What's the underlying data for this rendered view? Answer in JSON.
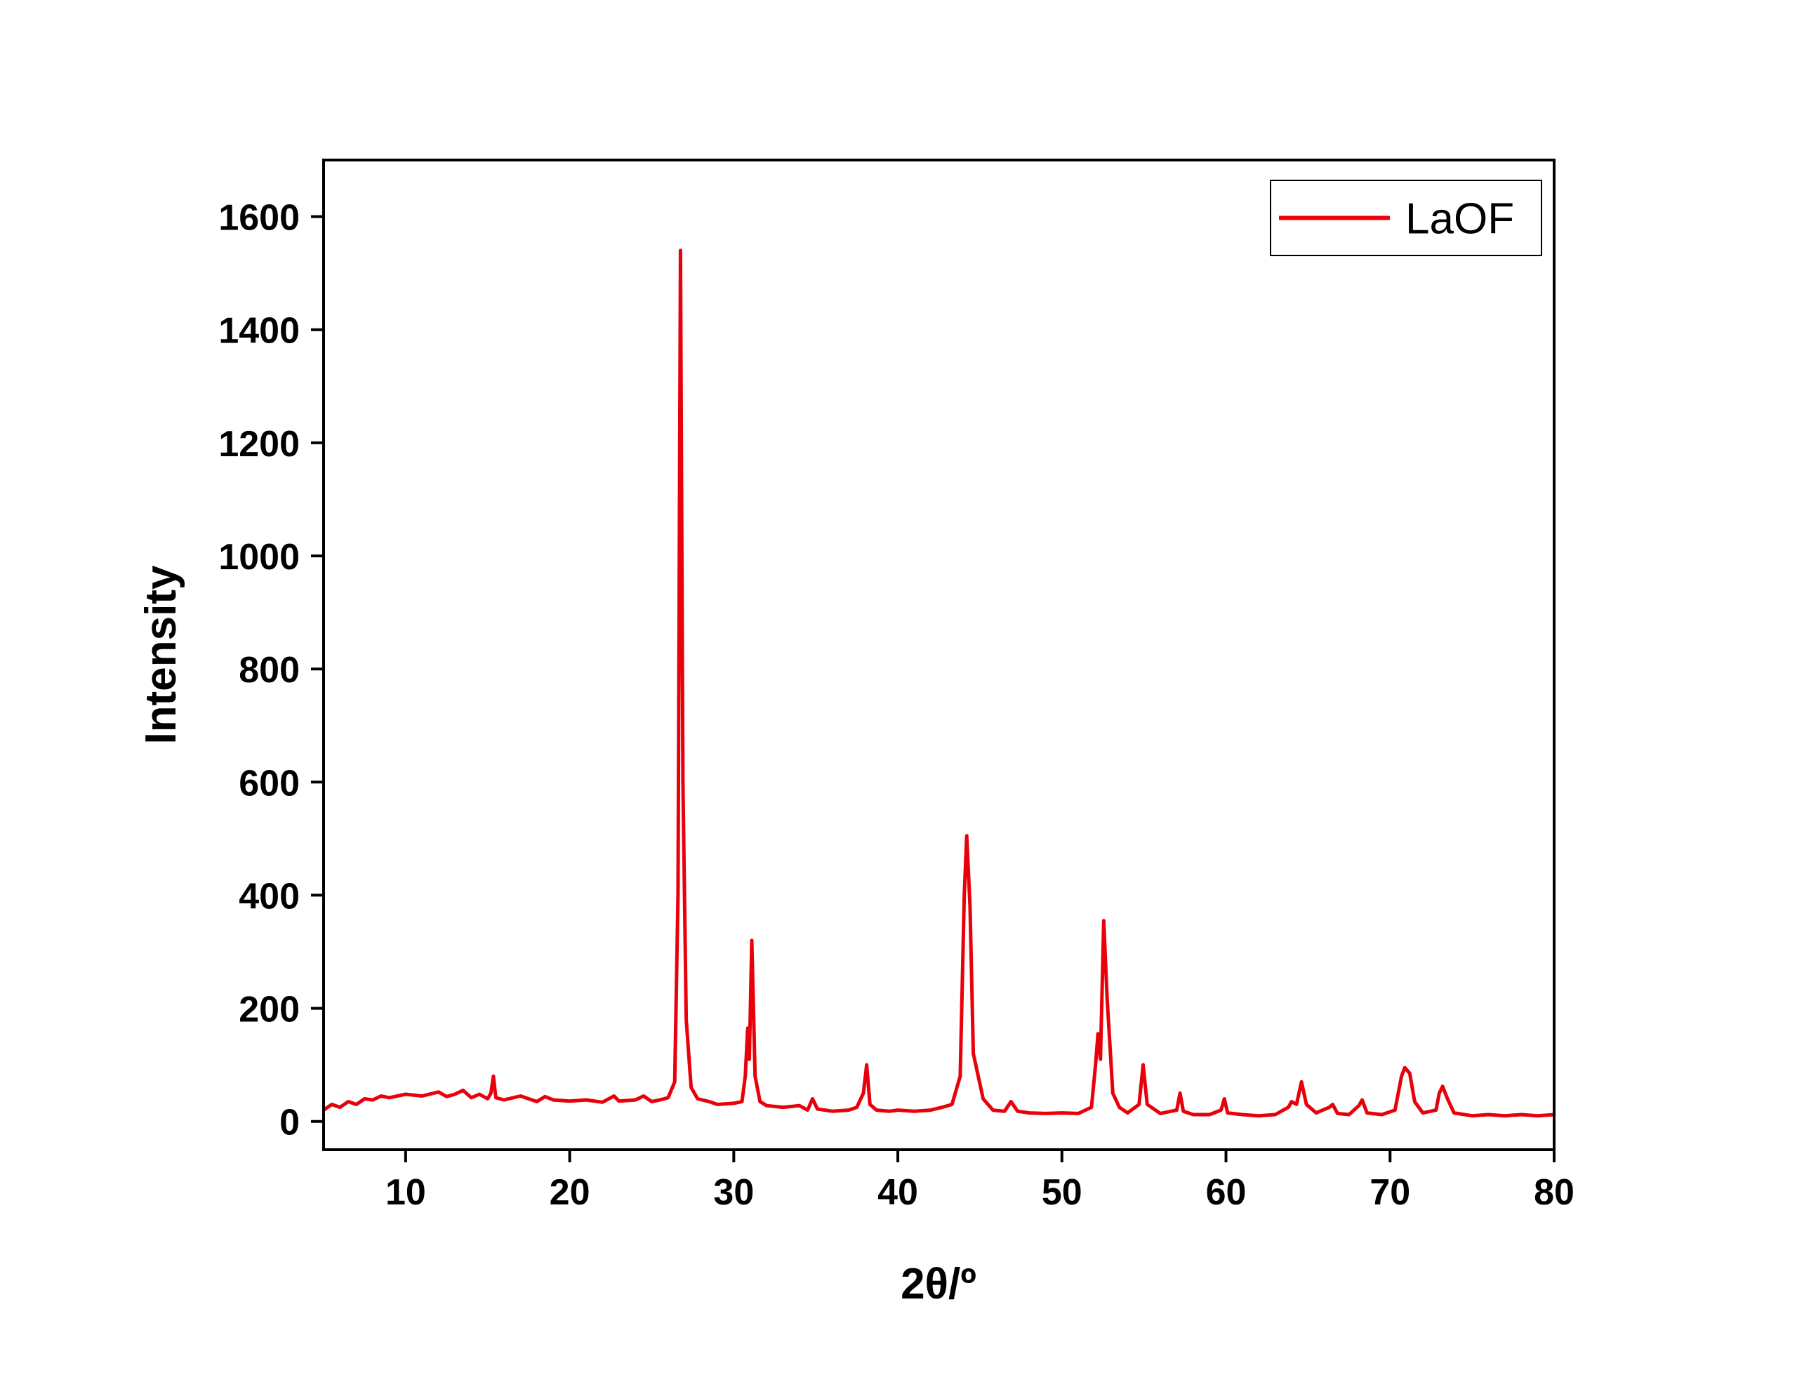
{
  "chart_data": {
    "type": "line",
    "xlabel": "2θ/º",
    "ylabel": "Intensity",
    "xlim": [
      5,
      80
    ],
    "xticks": [
      10,
      20,
      30,
      40,
      50,
      60,
      70,
      80
    ],
    "ylim": [
      -50,
      1700
    ],
    "yticks": [
      0,
      200,
      400,
      600,
      800,
      1000,
      1200,
      1400,
      1600
    ],
    "legend": "upper right",
    "x": [
      5,
      5.5,
      6,
      6.5,
      7,
      7.5,
      8,
      8.5,
      9,
      10,
      11,
      12,
      12.5,
      13,
      13.5,
      14,
      14.5,
      15,
      15.2,
      15.35,
      15.5,
      16,
      17,
      17.5,
      18,
      18.5,
      19,
      20,
      21,
      22,
      22.7,
      23,
      24,
      24.5,
      25,
      25.5,
      26,
      26.4,
      26.6,
      26.75,
      26.9,
      27.1,
      27.4,
      27.8,
      28.5,
      29,
      30,
      30.5,
      30.7,
      30.85,
      30.95,
      31.1,
      31.3,
      31.6,
      32,
      33,
      34,
      34.5,
      34.8,
      35.1,
      36,
      37,
      37.5,
      37.9,
      38.1,
      38.3,
      38.7,
      39.5,
      40,
      41,
      42,
      42.7,
      43.3,
      43.8,
      44.05,
      44.2,
      44.4,
      44.6,
      44.9,
      45.2,
      45.8,
      46.5,
      46.9,
      47.3,
      48,
      49,
      50,
      51,
      51.8,
      52.05,
      52.2,
      52.35,
      52.55,
      52.75,
      53.1,
      53.5,
      54,
      54.7,
      54.95,
      55.2,
      56,
      57,
      57.2,
      57.4,
      58,
      59,
      59.7,
      59.9,
      60.1,
      61,
      62,
      63,
      63.8,
      64.0,
      64.3,
      64.6,
      64.9,
      65.5,
      66.3,
      66.5,
      66.8,
      67.5,
      68.1,
      68.3,
      68.6,
      69.5,
      70.3,
      70.7,
      70.9,
      71.2,
      71.5,
      72,
      72.8,
      73.0,
      73.2,
      73.5,
      73.9,
      75,
      76,
      77,
      78,
      79,
      80
    ],
    "series": [
      {
        "name": "LaOF",
        "color": "#e8000b",
        "values": [
          20,
          30,
          25,
          35,
          30,
          40,
          38,
          45,
          42,
          48,
          45,
          52,
          44,
          48,
          55,
          42,
          48,
          40,
          50,
          80,
          42,
          38,
          45,
          40,
          35,
          44,
          38,
          36,
          38,
          34,
          45,
          36,
          38,
          45,
          35,
          38,
          42,
          70,
          400,
          1540,
          600,
          180,
          60,
          40,
          35,
          30,
          32,
          35,
          80,
          165,
          110,
          320,
          80,
          35,
          28,
          25,
          28,
          20,
          40,
          22,
          18,
          20,
          25,
          50,
          100,
          30,
          20,
          18,
          20,
          18,
          20,
          25,
          30,
          80,
          400,
          505,
          380,
          120,
          80,
          40,
          20,
          18,
          35,
          18,
          15,
          14,
          15,
          14,
          25,
          100,
          155,
          110,
          355,
          220,
          50,
          25,
          15,
          30,
          100,
          30,
          14,
          20,
          50,
          18,
          12,
          12,
          20,
          40,
          15,
          12,
          10,
          12,
          25,
          35,
          30,
          70,
          30,
          15,
          25,
          30,
          14,
          12,
          28,
          38,
          15,
          12,
          20,
          80,
          95,
          85,
          35,
          15,
          20,
          50,
          62,
          40,
          15,
          10,
          12,
          10,
          12,
          10,
          12
        ]
      }
    ]
  }
}
